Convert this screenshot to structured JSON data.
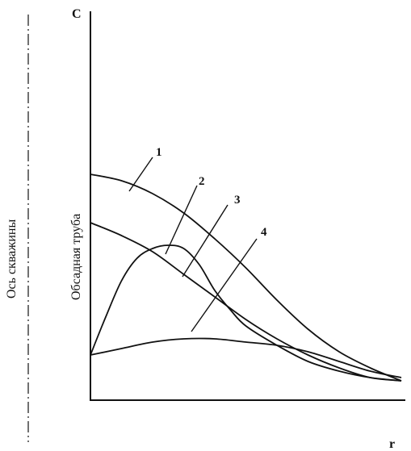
{
  "chart_data": {
    "type": "line",
    "title": "",
    "xlabel": "r",
    "ylabel": "C",
    "axis_annotation": "Обсадная труба",
    "centerline_label": "Ось скважины",
    "grid": false,
    "series": [
      {
        "name": "1",
        "x": [
          0.0,
          0.1,
          0.2,
          0.3,
          0.4,
          0.5,
          0.6,
          0.7,
          0.8,
          0.9,
          1.0
        ],
        "values": [
          0.7,
          0.68,
          0.64,
          0.58,
          0.5,
          0.41,
          0.31,
          0.22,
          0.15,
          0.1,
          0.06
        ]
      },
      {
        "name": "2",
        "x": [
          0.0,
          0.1,
          0.2,
          0.3,
          0.4,
          0.5,
          0.6,
          0.7,
          0.8,
          0.9,
          1.0
        ],
        "values": [
          0.55,
          0.51,
          0.46,
          0.39,
          0.32,
          0.25,
          0.19,
          0.14,
          0.1,
          0.07,
          0.06
        ]
      },
      {
        "name": "3",
        "x": [
          0.0,
          0.05,
          0.1,
          0.15,
          0.2,
          0.25,
          0.3,
          0.35,
          0.4,
          0.45,
          0.5,
          0.6,
          0.7,
          0.8,
          0.9,
          1.0
        ],
        "values": [
          0.14,
          0.26,
          0.37,
          0.44,
          0.47,
          0.48,
          0.47,
          0.42,
          0.34,
          0.28,
          0.23,
          0.17,
          0.12,
          0.09,
          0.07,
          0.06
        ]
      },
      {
        "name": "4",
        "x": [
          0.0,
          0.1,
          0.2,
          0.3,
          0.4,
          0.5,
          0.6,
          0.7,
          0.8,
          0.9,
          1.0
        ],
        "values": [
          0.14,
          0.16,
          0.18,
          0.19,
          0.19,
          0.18,
          0.17,
          0.15,
          0.12,
          0.09,
          0.07
        ]
      }
    ],
    "labels": [
      "1",
      "2",
      "3",
      "4"
    ]
  }
}
